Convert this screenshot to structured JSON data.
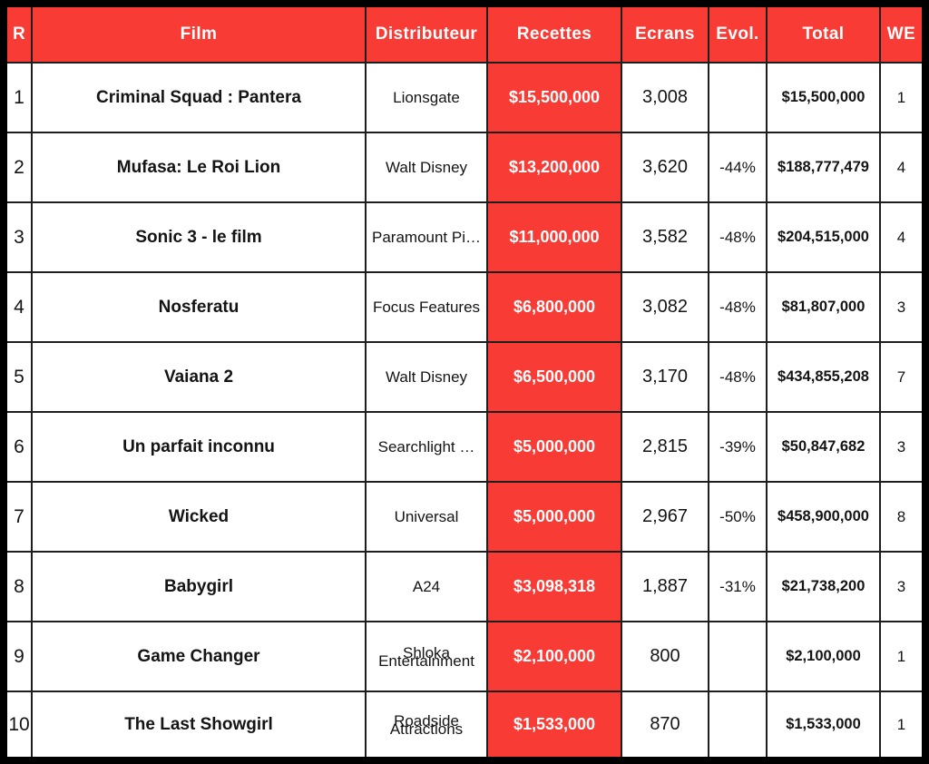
{
  "chart_data": {
    "type": "table",
    "columns": [
      "R",
      "Film",
      "Distributeur",
      "Recettes",
      "Ecrans",
      "Evol.",
      "Total",
      "WE"
    ],
    "rows": [
      {
        "rank": "1",
        "film": "Criminal Squad : Pantera",
        "distributor": "Lionsgate",
        "receipts": "$15,500,000",
        "screens": "3,008",
        "evolution": "",
        "total": "$15,500,000",
        "we": "1"
      },
      {
        "rank": "2",
        "film": "Mufasa: Le Roi Lion",
        "distributor": "Walt Disney",
        "receipts": "$13,200,000",
        "screens": "3,620",
        "evolution": "-44%",
        "total": "$188,777,479",
        "we": "4"
      },
      {
        "rank": "3",
        "film": "Sonic 3 - le film",
        "distributor": "Paramount Pi…",
        "receipts": "$11,000,000",
        "screens": "3,582",
        "evolution": "-48%",
        "total": "$204,515,000",
        "we": "4"
      },
      {
        "rank": "4",
        "film": "Nosferatu",
        "distributor": "Focus Features",
        "receipts": "$6,800,000",
        "screens": "3,082",
        "evolution": "-48%",
        "total": "$81,807,000",
        "we": "3"
      },
      {
        "rank": "5",
        "film": "Vaiana 2",
        "distributor": "Walt Disney",
        "receipts": "$6,500,000",
        "screens": "3,170",
        "evolution": "-48%",
        "total": "$434,855,208",
        "we": "7"
      },
      {
        "rank": "6",
        "film": "Un parfait inconnu",
        "distributor": "Searchlight …",
        "receipts": "$5,000,000",
        "screens": "2,815",
        "evolution": "-39%",
        "total": "$50,847,682",
        "we": "3"
      },
      {
        "rank": "7",
        "film": "Wicked",
        "distributor": "Universal",
        "receipts": "$5,000,000",
        "screens": "2,967",
        "evolution": "-50%",
        "total": "$458,900,000",
        "we": "8"
      },
      {
        "rank": "8",
        "film": "Babygirl",
        "distributor": "A24",
        "receipts": "$3,098,318",
        "screens": "1,887",
        "evolution": "-31%",
        "total": "$21,738,200",
        "we": "3"
      },
      {
        "rank": "9",
        "film": "Game Changer",
        "distributor": "Shloka\nEntertainment",
        "distributor_overlap": true,
        "receipts": "$2,100,000",
        "screens": "800",
        "evolution": "",
        "total": "$2,100,000",
        "we": "1"
      },
      {
        "rank": "10",
        "film": "The Last Showgirl",
        "distributor": "Roadside\nAttractions",
        "distributor_overlap": true,
        "receipts": "$1,533,000",
        "screens": "870",
        "evolution": "",
        "total": "$1,533,000",
        "we": "1"
      }
    ]
  },
  "colors": {
    "accent_red": "#f93b35",
    "outer_border": "#000000",
    "grid_line": "#1e1e1e",
    "text_dark": "#141414",
    "text_light": "#ffffff"
  }
}
